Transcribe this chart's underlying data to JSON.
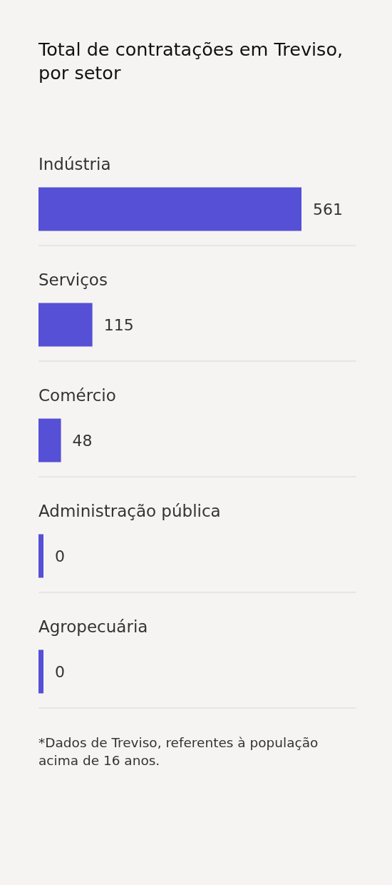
{
  "chart_data": {
    "type": "bar",
    "orientation": "horizontal",
    "title": "Total de contratações em Treviso, por setor",
    "categories": [
      "Indústria",
      "Serviços",
      "Comércio",
      "Administração pública",
      "Agropecuária"
    ],
    "values": [
      561,
      115,
      48,
      0,
      0
    ],
    "color": "#5650d6",
    "data_labels": true,
    "grid": "y",
    "annotations": [
      "*Dados de Treviso, referentes à população acima de 16 anos."
    ]
  }
}
